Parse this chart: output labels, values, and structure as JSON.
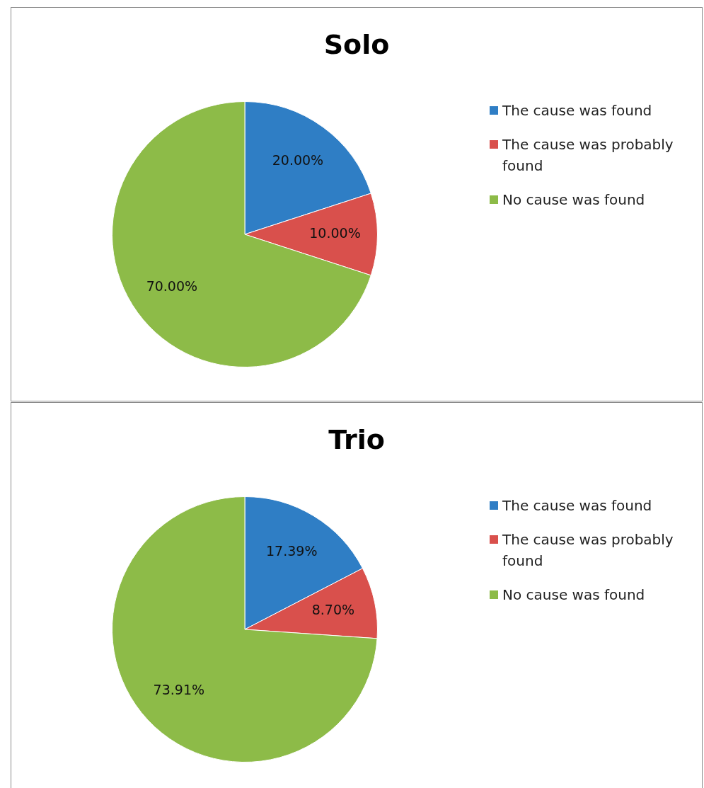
{
  "chart_data": [
    {
      "type": "pie",
      "title": "Solo",
      "categories": [
        "The cause was found",
        "The cause was probably found",
        "No cause was found"
      ],
      "values": [
        20,
        10,
        70
      ],
      "colors": [
        "#2f7ec5",
        "#d9504c",
        "#8dbb48"
      ],
      "value_labels": [
        "20.00%",
        "10.00%",
        "70.00%"
      ],
      "legend": "right"
    },
    {
      "type": "pie",
      "title": "Trio",
      "categories": [
        "The cause was found",
        "The cause was probably found",
        "No cause was found"
      ],
      "values": [
        17.39,
        8.7,
        73.91
      ],
      "colors": [
        "#2f7ec5",
        "#d9504c",
        "#8dbb48"
      ],
      "value_labels": [
        "17.39%",
        "8.70%",
        "73.91%"
      ],
      "legend": "right"
    }
  ]
}
